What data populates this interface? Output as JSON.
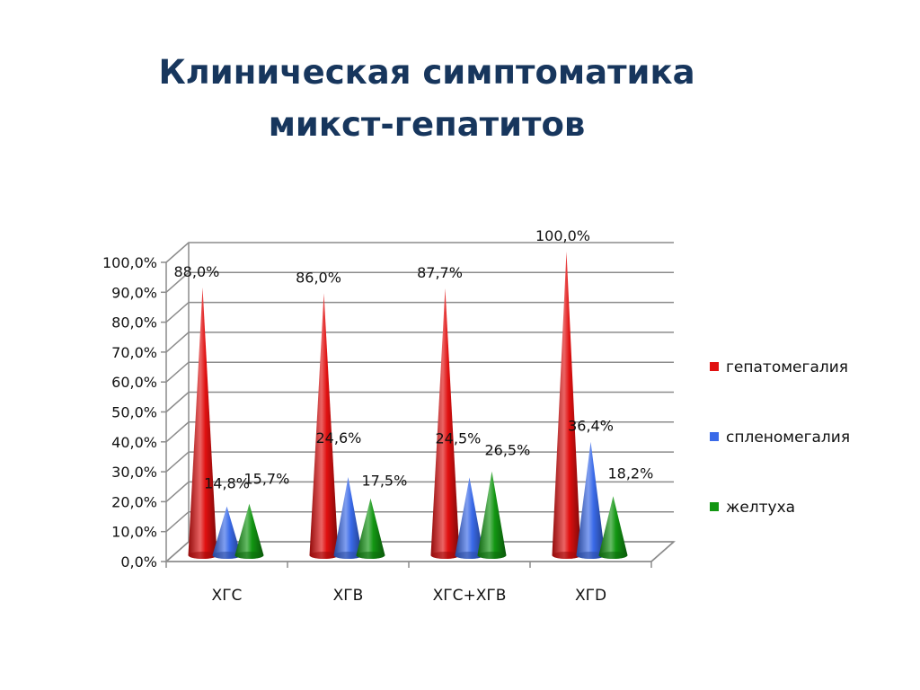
{
  "slide": {
    "title_line1": "Клиническая симптоматика",
    "title_line2": "микст-гепатитов"
  },
  "colors": {
    "series": [
      "#e01010",
      "#3a6ae8",
      "#129612"
    ],
    "grid": "#8c8c8c"
  },
  "chart_data": {
    "type": "bar",
    "categories": [
      "ХГС",
      "ХГВ",
      "ХГС+ХГВ",
      "ХГD"
    ],
    "series": [
      {
        "name": "гепатомегалия",
        "values": [
          88.0,
          86.0,
          87.7,
          100.0
        ],
        "labels": [
          "88,0%",
          "86,0%",
          "87,7%",
          "100,0%"
        ]
      },
      {
        "name": "спленомегалия",
        "values": [
          14.8,
          24.6,
          24.5,
          36.4
        ],
        "labels": [
          "14,8%",
          "24,6%",
          "24,5%",
          "36,4%"
        ]
      },
      {
        "name": "желтуха",
        "values": [
          15.7,
          17.5,
          26.5,
          18.2
        ],
        "labels": [
          "15,7%",
          "17,5%",
          "26,5%",
          "18,2%"
        ]
      }
    ],
    "yticks": [
      0,
      10,
      20,
      30,
      40,
      50,
      60,
      70,
      80,
      90,
      100
    ],
    "ytick_labels": [
      "0,0%",
      "10,0%",
      "20,0%",
      "30,0%",
      "40,0%",
      "50,0%",
      "60,0%",
      "70,0%",
      "80,0%",
      "90,0%",
      "100,0%"
    ],
    "ylim": [
      0,
      100
    ],
    "title": "",
    "xlabel": "",
    "ylabel": "",
    "grid": true,
    "legend": "right",
    "shape": "3d-cone"
  }
}
